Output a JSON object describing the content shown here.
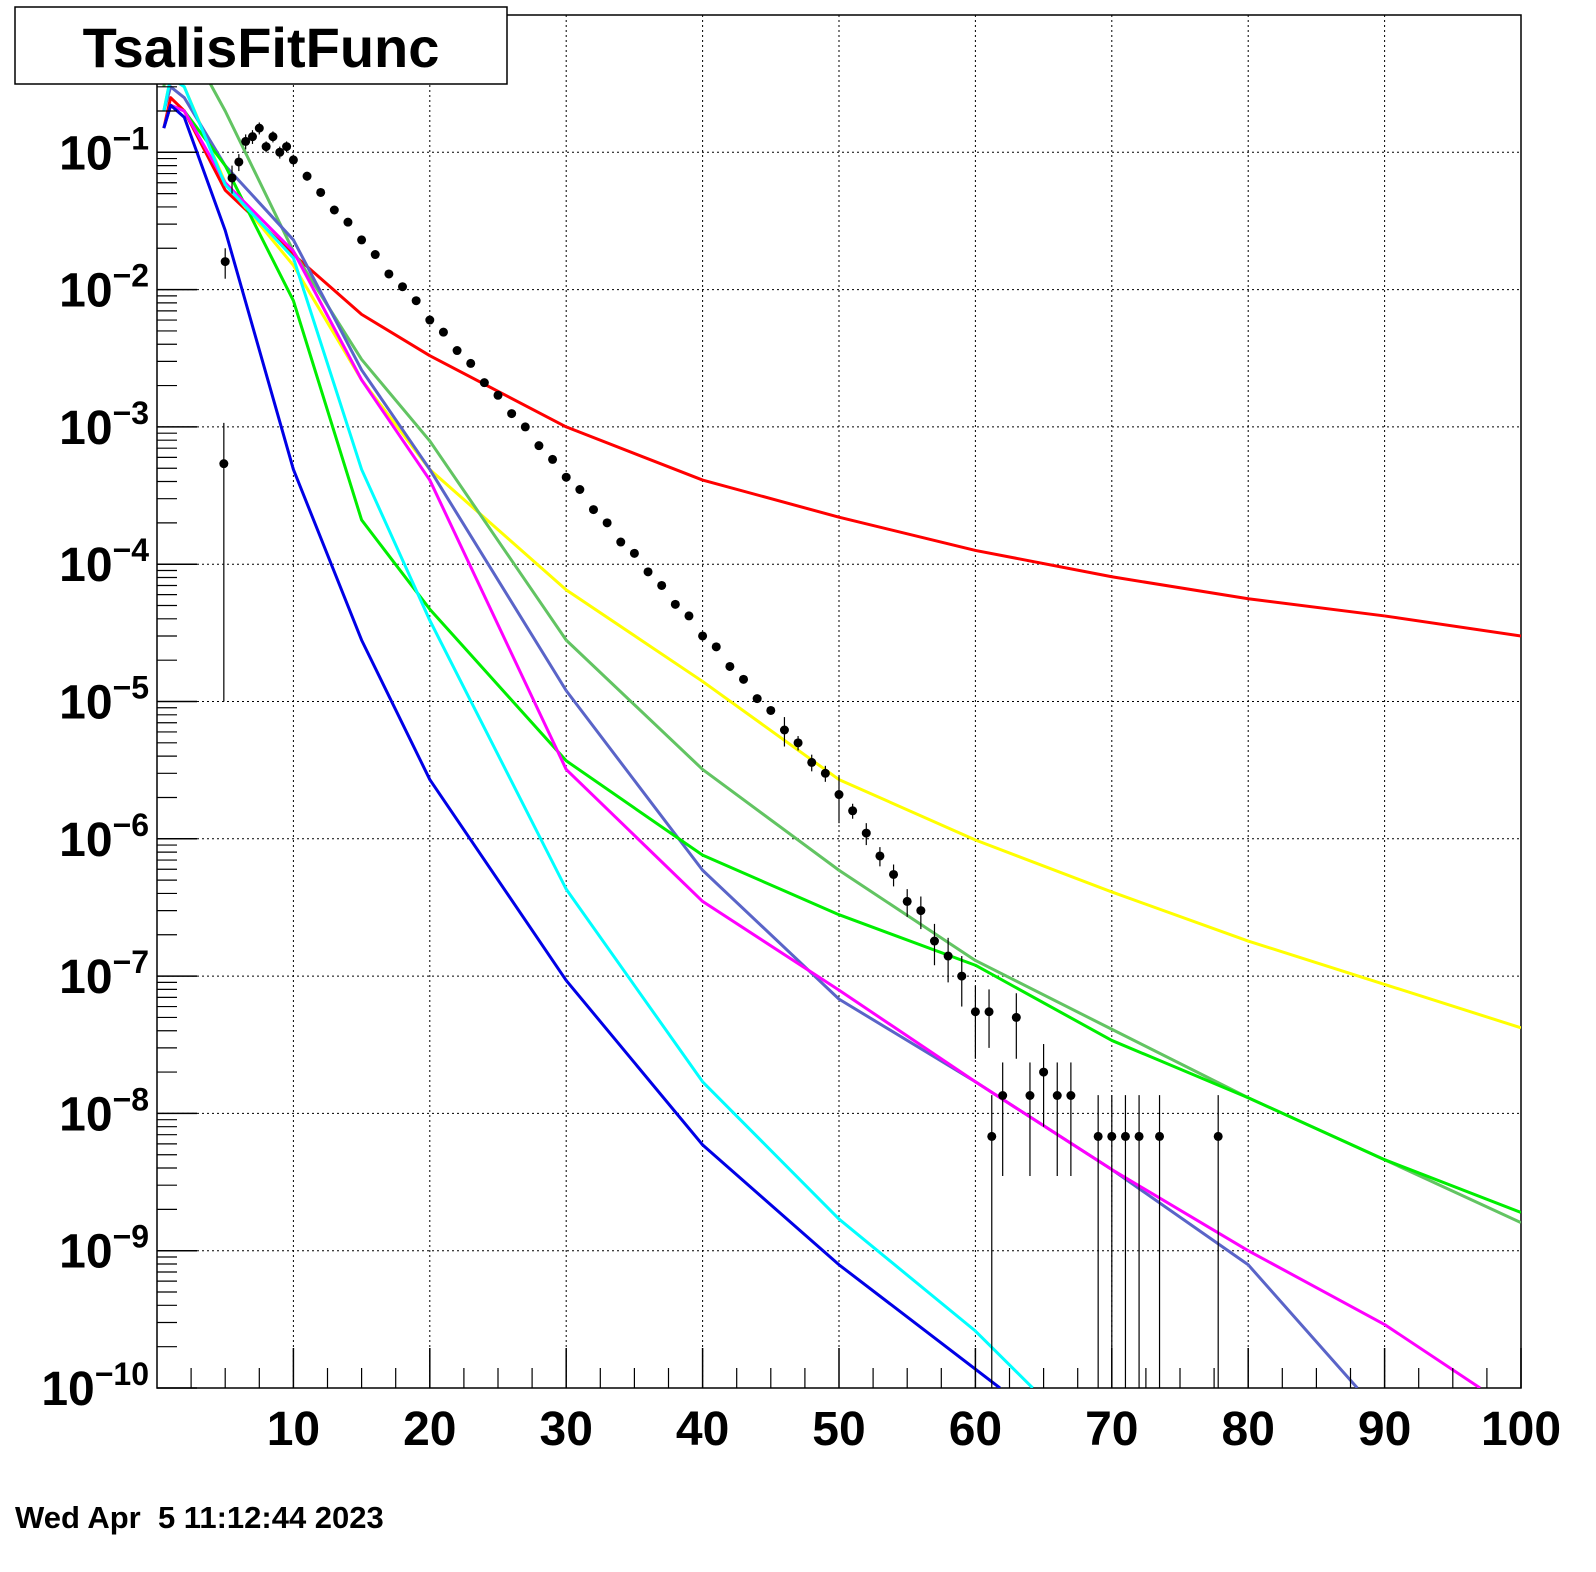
{
  "chart_data": {
    "type": "scatter",
    "title": "TsalisFitFunc",
    "footer": "Wed Apr  5 11:12:44 2023",
    "log_y": true,
    "grid": true,
    "xlim": [
      0,
      100
    ],
    "xticks": [
      10,
      20,
      30,
      40,
      50,
      60,
      70,
      80,
      90,
      100
    ],
    "ylim": [
      1e-10,
      1
    ],
    "yticks": [
      {
        "value": 0.1,
        "label": "10−1"
      },
      {
        "value": 0.01,
        "label": "10−2"
      },
      {
        "value": 0.001,
        "label": "10−3"
      },
      {
        "value": 0.0001,
        "label": "10−4"
      },
      {
        "value": 1e-05,
        "label": "10−5"
      },
      {
        "value": 1e-06,
        "label": "10−6"
      },
      {
        "value": 1e-07,
        "label": "10−7"
      },
      {
        "value": 1e-08,
        "label": "10−8"
      },
      {
        "value": 1e-09,
        "label": "10−9"
      },
      {
        "value": 1e-10,
        "label": "10−10"
      }
    ],
    "points": {
      "color": "#000000",
      "x": [
        4.9,
        5,
        5.5,
        6,
        6.5,
        7,
        7.5,
        8,
        8.5,
        9,
        9.5,
        10,
        11,
        12,
        13,
        14,
        15,
        16,
        17,
        18,
        19,
        20,
        21,
        22,
        23,
        24,
        25,
        26,
        27,
        28,
        29,
        30,
        31,
        32,
        33,
        34,
        35,
        36,
        37,
        38,
        39,
        40,
        41,
        42,
        43,
        44,
        45,
        46,
        47,
        48,
        49,
        50,
        51,
        52,
        53,
        54,
        55,
        56,
        57,
        58,
        59,
        60,
        61,
        61.2,
        62,
        63,
        64,
        65,
        66,
        67,
        69,
        70,
        71,
        72,
        73.5,
        77.8
      ],
      "values": [
        0.00054,
        0.016,
        0.065,
        0.085,
        0.12,
        0.13,
        0.15,
        0.11,
        0.13,
        0.1,
        0.11,
        0.088,
        0.067,
        0.051,
        0.038,
        0.031,
        0.023,
        0.018,
        0.013,
        0.0105,
        0.0083,
        0.006,
        0.0049,
        0.0036,
        0.0029,
        0.0021,
        0.0017,
        0.00125,
        0.001,
        0.00073,
        0.00058,
        0.00043,
        0.00035,
        0.00025,
        0.0002,
        0.000145,
        0.00012,
        8.8e-05,
        7e-05,
        5.1e-05,
        4.2e-05,
        3e-05,
        2.5e-05,
        1.8e-05,
        1.45e-05,
        1.05e-05,
        8.6e-06,
        6.2e-06,
        5e-06,
        3.6e-06,
        3e-06,
        2.1e-06,
        1.6e-06,
        1.1e-06,
        7.5e-07,
        5.5e-07,
        3.5e-07,
        3e-07,
        1.8e-07,
        1.4e-07,
        1e-07,
        5.5e-08,
        5.5e-08,
        6.8e-09,
        1.35e-08,
        5e-08,
        1.35e-08,
        2e-08,
        1.35e-08,
        1.35e-08,
        6.8e-09,
        6.8e-09,
        6.8e-09,
        6.8e-09,
        6.8e-09,
        6.8e-09
      ],
      "errors": [
        0.00053,
        0.004,
        0.015,
        0.012,
        0.015,
        0.015,
        0.015,
        0.01,
        0.012,
        0.01,
        0.01,
        0.008,
        0.005,
        0.003,
        0.002,
        0.0015,
        0.001,
        0.0007,
        0.0005,
        0.0003,
        0.0002,
        0.00015,
        0.0001,
        8e-05,
        6e-05,
        4e-05,
        3e-05,
        2.5e-05,
        2e-05,
        1.5e-05,
        1.2e-05,
        9e-06,
        7e-06,
        5e-06,
        4e-06,
        3e-06,
        2.5e-06,
        2e-06,
        1.5e-06,
        1.2e-06,
        1e-06,
        8e-07,
        6e-07,
        5e-07,
        4e-07,
        3e-07,
        2.5e-07,
        1.5e-06,
        6e-07,
        5e-07,
        4e-07,
        8e-07,
        2e-07,
        2e-07,
        1.2e-07,
        1e-07,
        8e-08,
        8e-08,
        6e-08,
        5e-08,
        4e-08,
        3e-08,
        2.5e-08,
        6.8e-09,
        1e-08,
        2.5e-08,
        1e-08,
        1.2e-08,
        1e-08,
        1e-08,
        6.8e-09,
        6.8e-09,
        6.8e-09,
        6.8e-09,
        6.8e-09,
        6.8e-09
      ]
    },
    "series": [
      {
        "color": "#ff0000",
        "x": [
          0.5,
          1,
          2,
          5,
          10,
          15,
          20,
          30,
          40,
          50,
          60,
          70,
          80,
          90,
          100
        ],
        "values": [
          0.15,
          0.25,
          0.2,
          0.053,
          0.018,
          0.0066,
          0.0033,
          0.001,
          0.00041,
          0.00022,
          0.000126,
          8.1e-05,
          5.6e-05,
          4.2e-05,
          3e-05
        ]
      },
      {
        "color": "#ffff00",
        "x": [
          0.5,
          1,
          2,
          5,
          10,
          15,
          20,
          30,
          40,
          50,
          60,
          70,
          80,
          90,
          100
        ],
        "values": [
          0.2,
          0.35,
          0.3,
          0.06,
          0.015,
          0.0022,
          0.00049,
          6.5e-05,
          1.4e-05,
          2.7e-06,
          9.8e-07,
          4.1e-07,
          1.8e-07,
          8.7e-08,
          4.2e-08
        ]
      },
      {
        "color": "#62c462",
        "x": [
          0.5,
          1,
          2,
          5,
          10,
          15,
          20,
          30,
          40,
          50,
          60,
          70,
          80,
          90,
          100
        ],
        "values": [
          0.3,
          0.6,
          0.7,
          0.2,
          0.019,
          0.0031,
          0.00079,
          2.8e-05,
          3.2e-06,
          5.9e-07,
          1.3e-07,
          4.1e-08,
          1.3e-08,
          4.6e-09,
          1.6e-09
        ]
      },
      {
        "color": "#5a64c8",
        "x": [
          0.5,
          1,
          2,
          5,
          10,
          15,
          20,
          30,
          40,
          50,
          60,
          70,
          80,
          88
        ],
        "values": [
          0.2,
          0.3,
          0.25,
          0.08,
          0.023,
          0.0026,
          0.00049,
          1.2e-05,
          5.9e-07,
          6.8e-08,
          1.7e-08,
          3.9e-09,
          7.9e-10,
          1e-10
        ]
      },
      {
        "color": "#00ee00",
        "x": [
          0.5,
          1,
          2,
          5,
          10,
          15,
          20,
          30,
          40,
          50,
          60,
          70,
          80,
          90,
          100
        ],
        "values": [
          0.15,
          0.22,
          0.2,
          0.08,
          0.0083,
          0.00021,
          4.7e-05,
          3.7e-06,
          7.6e-07,
          2.8e-07,
          1.2e-07,
          3.4e-08,
          1.3e-08,
          4.6e-09,
          1.9e-09
        ]
      },
      {
        "color": "#ff00ff",
        "x": [
          0.5,
          1,
          2,
          5,
          10,
          15,
          20,
          30,
          40,
          50,
          60,
          70,
          80,
          90,
          97
        ],
        "values": [
          0.15,
          0.22,
          0.2,
          0.06,
          0.019,
          0.0022,
          0.00041,
          3.2e-06,
          3.5e-07,
          7.9e-08,
          1.7e-08,
          3.9e-09,
          1e-09,
          2.9e-10,
          1e-10
        ]
      },
      {
        "color": "#00ffff",
        "x": [
          0.5,
          1,
          2,
          5,
          10,
          15,
          20,
          30,
          40,
          50,
          60,
          64.2
        ],
        "values": [
          0.2,
          0.35,
          0.3,
          0.058,
          0.017,
          0.00049,
          3.9e-05,
          4.3e-07,
          1.7e-08,
          1.7e-09,
          2.6e-10,
          1e-10
        ]
      },
      {
        "color": "#0000e6",
        "x": [
          0.5,
          1,
          2,
          5,
          10,
          15,
          20,
          30,
          40,
          50,
          61.8
        ],
        "values": [
          0.15,
          0.22,
          0.18,
          0.027,
          0.00049,
          2.8e-05,
          2.7e-06,
          9.3e-08,
          5.9e-09,
          7.9e-10,
          1e-10
        ]
      }
    ]
  }
}
